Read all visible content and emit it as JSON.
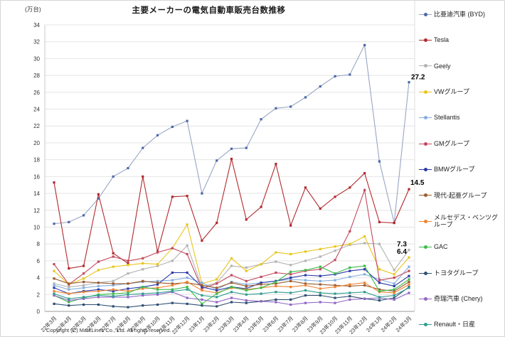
{
  "title": "主要メーカーの電気自動車販売台数推移",
  "y_axis_label": "(万台)",
  "copyright": "Copyright (C) MarkLines Co., Ltd. All rights reserved.",
  "chart_data": {
    "type": "line",
    "title": "主要メーカーの電気自動車販売台数推移",
    "xlabel": "",
    "ylabel": "(万台)",
    "ylim": [
      0,
      34
    ],
    "ytick_step": 2,
    "grid": true,
    "legend_position": "right",
    "x": [
      "22年3月",
      "22年4月",
      "22年5月",
      "22年6月",
      "22年7月",
      "22年8月",
      "22年9月",
      "22年10月",
      "22年11月",
      "22年12月",
      "23年1月",
      "23年2月",
      "23年3月",
      "23年4月",
      "23年5月",
      "23年6月",
      "23年7月",
      "23年8月",
      "23年9月",
      "23年10月",
      "23年11月",
      "23年12月",
      "24年1月",
      "24年2月",
      "24年3月"
    ],
    "series": [
      {
        "id": "byd",
        "name": "比亜迪汽車 (BYD)",
        "color": "#98a6c4",
        "marker_color": "#4a67a8",
        "end_label": "27.2",
        "end_label_offset": [
          3,
          -4
        ],
        "values": [
          10.4,
          10.6,
          11.4,
          13.4,
          16.0,
          17.0,
          19.4,
          20.9,
          21.9,
          22.6,
          14.0,
          17.9,
          19.3,
          19.4,
          22.8,
          24.1,
          24.3,
          25.4,
          26.7,
          27.9,
          28.1,
          31.6,
          17.8,
          10.5,
          27.2
        ]
      },
      {
        "id": "tesla",
        "name": "Tesla",
        "color": "#b22a2e",
        "end_label": "14.5",
        "end_label_offset": [
          2,
          -6
        ],
        "values": [
          15.3,
          5.1,
          5.4,
          13.9,
          6.9,
          5.7,
          16.0,
          7.1,
          13.6,
          13.7,
          8.4,
          10.5,
          18.1,
          10.9,
          12.4,
          17.5,
          10.2,
          14.7,
          12.2,
          13.6,
          14.7,
          16.4,
          10.6,
          10.5,
          14.5
        ]
      },
      {
        "id": "geely",
        "name": "Geely",
        "color": "#b3b3b3",
        "end_label": "7.3",
        "end_label_offset": [
          -17,
          -5
        ],
        "values": [
          3.3,
          2.9,
          3.1,
          3.4,
          3.6,
          4.5,
          5.0,
          5.4,
          6.0,
          7.8,
          2.9,
          3.4,
          5.4,
          5.2,
          5.6,
          5.9,
          5.5,
          6.0,
          6.5,
          7.2,
          7.9,
          8.1,
          8.0,
          4.9,
          7.3
        ]
      },
      {
        "id": "vw",
        "name": "VWグループ",
        "color": "#e8c61c",
        "end_label": "6.4",
        "end_label_offset": [
          -17,
          -5
        ],
        "values": [
          4.8,
          3.2,
          3.9,
          4.9,
          5.3,
          5.5,
          5.7,
          5.6,
          7.5,
          10.3,
          3.3,
          3.8,
          6.3,
          4.8,
          5.6,
          7.0,
          6.8,
          7.1,
          7.4,
          7.7,
          8.0,
          8.9,
          5.0,
          4.4,
          6.4
        ]
      },
      {
        "id": "stellantis",
        "name": "Stellantis",
        "color": "#85aede",
        "values": [
          3.1,
          2.6,
          2.8,
          3.0,
          3.1,
          3.3,
          3.5,
          3.6,
          3.7,
          4.0,
          3.4,
          2.6,
          3.5,
          3.2,
          3.4,
          3.6,
          3.8,
          3.7,
          3.6,
          3.7,
          4.1,
          4.4,
          3.8,
          3.3,
          5.3
        ]
      },
      {
        "id": "gm",
        "name": "GMグループ",
        "color": "#c34a5e",
        "values": [
          5.6,
          3.2,
          4.5,
          5.9,
          6.5,
          6.0,
          6.3,
          7.0,
          7.5,
          6.8,
          2.7,
          3.3,
          4.3,
          3.6,
          4.1,
          4.6,
          4.4,
          4.8,
          5.0,
          6.1,
          9.5,
          14.4,
          3.7,
          4.0,
          4.8
        ]
      },
      {
        "id": "bmw",
        "name": "BMWグループ",
        "color": "#2939a8",
        "values": [
          2.8,
          2.1,
          2.4,
          2.6,
          2.4,
          2.7,
          2.9,
          3.2,
          4.6,
          4.6,
          2.9,
          2.5,
          2.9,
          2.7,
          3.4,
          3.6,
          4.0,
          4.3,
          4.2,
          4.4,
          4.8,
          5.0,
          3.4,
          3.0,
          4.2
        ]
      },
      {
        "id": "hyundai-kia",
        "name": "現代-起亜グループ",
        "color": "#9a5b2f",
        "values": [
          3.9,
          3.3,
          3.5,
          3.4,
          3.3,
          3.3,
          3.6,
          3.4,
          3.3,
          3.4,
          3.1,
          2.8,
          3.4,
          3.0,
          3.2,
          3.3,
          3.6,
          3.3,
          3.2,
          3.1,
          3.0,
          3.1,
          2.6,
          2.4,
          3.5
        ]
      },
      {
        "id": "mercedes-benz",
        "name": "メルセデス・ベンツグループ",
        "color": "#ee8433",
        "values": [
          2.4,
          2.1,
          2.3,
          2.4,
          2.6,
          2.4,
          2.7,
          2.8,
          3.1,
          3.5,
          2.5,
          2.2,
          2.8,
          2.6,
          2.8,
          3.0,
          2.9,
          3.1,
          2.7,
          2.9,
          3.2,
          3.4,
          2.3,
          2.2,
          3.2
        ]
      },
      {
        "id": "gac",
        "name": "GAC",
        "color": "#3dbb4a",
        "values": [
          1.9,
          1.1,
          1.6,
          2.0,
          2.1,
          2.2,
          2.9,
          2.6,
          2.6,
          2.9,
          0.9,
          2.1,
          2.9,
          2.5,
          2.8,
          3.5,
          4.7,
          4.9,
          5.3,
          4.5,
          5.2,
          5.4,
          2.4,
          2.6,
          3.8
        ]
      },
      {
        "id": "toyota",
        "name": "トヨタグループ",
        "color": "#2f4f72",
        "values": [
          0.9,
          0.7,
          0.8,
          0.8,
          0.6,
          0.5,
          0.7,
          0.8,
          1.0,
          0.9,
          0.7,
          0.6,
          1.1,
          1.0,
          1.2,
          1.4,
          1.4,
          1.9,
          1.9,
          1.6,
          1.8,
          1.5,
          1.3,
          1.6,
          2.9
        ]
      },
      {
        "id": "chery",
        "name": "奇瑞汽車 (Chery)",
        "color": "#9166c4",
        "values": [
          1.9,
          1.3,
          1.5,
          1.7,
          1.7,
          1.7,
          1.9,
          2.0,
          2.3,
          1.6,
          1.4,
          1.1,
          1.6,
          1.3,
          1.2,
          1.1,
          0.8,
          1.0,
          1.1,
          1.0,
          1.4,
          1.5,
          1.6,
          1.4,
          2.2
        ]
      },
      {
        "id": "renault-nissan",
        "name": "Renault・日産",
        "color": "#2f9d8f",
        "values": [
          2.1,
          1.5,
          1.7,
          1.9,
          1.8,
          2.0,
          2.1,
          2.2,
          2.4,
          2.6,
          1.9,
          1.7,
          2.3,
          2.0,
          2.1,
          2.3,
          2.2,
          2.5,
          2.2,
          2.1,
          2.2,
          2.3,
          1.7,
          1.9,
          2.8
        ]
      }
    ]
  }
}
